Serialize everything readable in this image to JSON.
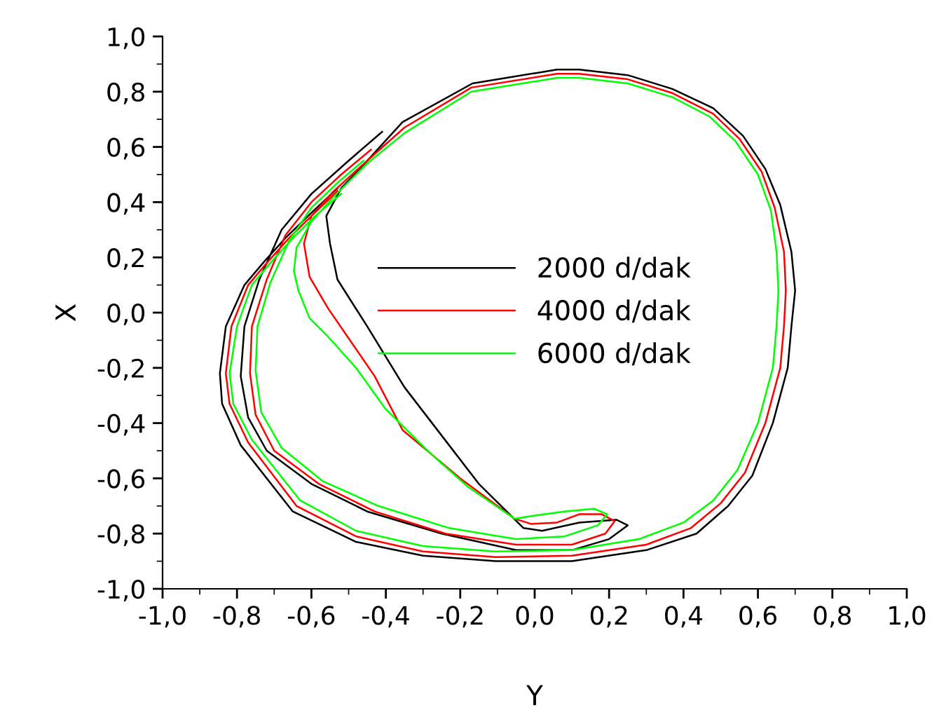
{
  "chart_data": {
    "type": "line",
    "xlabel": "Y",
    "ylabel": "X",
    "legend": "center",
    "grid": false,
    "xlim": [
      -1.0,
      1.0
    ],
    "ylim": [
      -1.0,
      1.0
    ],
    "xticks": [
      {
        "value": -1.0,
        "label": "-1,0"
      },
      {
        "value": -0.8,
        "label": "-0,8"
      },
      {
        "value": -0.6,
        "label": "-0,6"
      },
      {
        "value": -0.4,
        "label": "-0,4"
      },
      {
        "value": -0.2,
        "label": "-0,2"
      },
      {
        "value": 0.0,
        "label": "0,0"
      },
      {
        "value": 0.2,
        "label": "0,2"
      },
      {
        "value": 0.4,
        "label": "0,4"
      },
      {
        "value": 0.6,
        "label": "0,6"
      },
      {
        "value": 0.8,
        "label": "0,8"
      },
      {
        "value": 1.0,
        "label": "1,0"
      }
    ],
    "yticks": [
      {
        "value": -1.0,
        "label": "-1,0"
      },
      {
        "value": -0.8,
        "label": "-0,8"
      },
      {
        "value": -0.6,
        "label": "-0,6"
      },
      {
        "value": -0.4,
        "label": "-0,4"
      },
      {
        "value": -0.2,
        "label": "-0,2"
      },
      {
        "value": 0.0,
        "label": "0,0"
      },
      {
        "value": 0.2,
        "label": "0,2"
      },
      {
        "value": 0.4,
        "label": "0,4"
      },
      {
        "value": 0.6,
        "label": "0,6"
      },
      {
        "value": 0.8,
        "label": "0,8"
      },
      {
        "value": 1.0,
        "label": "1,0"
      }
    ],
    "series": [
      {
        "name": "2000 d/dak",
        "color": "#000000",
        "x": [
          -0.41,
          -0.5,
          -0.6,
          -0.68,
          -0.74,
          -0.78,
          -0.79,
          -0.77,
          -0.72,
          -0.6,
          -0.45,
          -0.25,
          -0.05,
          0.1,
          0.2,
          0.25,
          0.22,
          0.12,
          0.02,
          -0.03,
          -0.06,
          -0.15,
          -0.23,
          -0.35,
          -0.45,
          -0.53,
          -0.55,
          -0.56,
          -0.52,
          -0.45,
          -0.355,
          -0.167,
          0.06,
          0.12,
          0.25,
          0.37,
          0.48,
          0.56,
          0.62,
          0.66,
          0.69,
          0.7,
          0.69,
          0.68,
          0.64,
          0.585,
          0.52,
          0.435,
          0.3,
          0.1,
          -0.105,
          -0.3,
          -0.48,
          -0.65,
          -0.79,
          -0.84,
          -0.846,
          -0.83,
          -0.78,
          -0.73,
          -0.67,
          -0.605,
          -0.53
        ],
        "values": [
          0.655,
          0.55,
          0.43,
          0.3,
          0.12,
          -0.05,
          -0.23,
          -0.38,
          -0.5,
          -0.62,
          -0.72,
          -0.8,
          -0.86,
          -0.86,
          -0.82,
          -0.77,
          -0.75,
          -0.76,
          -0.79,
          -0.78,
          -0.74,
          -0.62,
          -0.48,
          -0.27,
          -0.05,
          0.12,
          0.25,
          0.35,
          0.45,
          0.55,
          0.69,
          0.83,
          0.88,
          0.88,
          0.86,
          0.81,
          0.74,
          0.64,
          0.52,
          0.39,
          0.22,
          0.08,
          -0.05,
          -0.2,
          -0.4,
          -0.59,
          -0.7,
          -0.8,
          -0.86,
          -0.9,
          -0.9,
          -0.88,
          -0.83,
          -0.72,
          -0.48,
          -0.33,
          -0.22,
          -0.05,
          0.1,
          0.18,
          0.27,
          0.355,
          0.45
        ]
      },
      {
        "name": "4000 d/dak",
        "color": "#ff0000",
        "x": [
          -0.44,
          -0.52,
          -0.6,
          -0.67,
          -0.72,
          -0.76,
          -0.765,
          -0.75,
          -0.7,
          -0.58,
          -0.43,
          -0.24,
          -0.05,
          0.1,
          0.19,
          0.215,
          0.18,
          0.12,
          0.06,
          -0.01,
          -0.054,
          -0.2,
          -0.355,
          -0.43,
          -0.555,
          -0.605,
          -0.62,
          -0.6,
          -0.54,
          -0.45,
          -0.35,
          -0.17,
          0.06,
          0.12,
          0.25,
          0.37,
          0.48,
          0.55,
          0.61,
          0.645,
          0.67,
          0.675,
          0.67,
          0.66,
          0.62,
          0.565,
          0.5,
          0.42,
          0.3,
          0.1,
          -0.105,
          -0.3,
          -0.48,
          -0.64,
          -0.77,
          -0.82,
          -0.83,
          -0.815,
          -0.77,
          -0.72,
          -0.66,
          -0.6,
          -0.53
        ],
        "values": [
          0.59,
          0.5,
          0.4,
          0.28,
          0.12,
          -0.05,
          -0.22,
          -0.37,
          -0.5,
          -0.62,
          -0.72,
          -0.8,
          -0.84,
          -0.84,
          -0.8,
          -0.755,
          -0.73,
          -0.73,
          -0.76,
          -0.765,
          -0.746,
          -0.6,
          -0.425,
          -0.23,
          0.015,
          0.13,
          0.25,
          0.35,
          0.44,
          0.55,
          0.67,
          0.815,
          0.865,
          0.865,
          0.845,
          0.795,
          0.72,
          0.63,
          0.51,
          0.38,
          0.22,
          0.08,
          -0.05,
          -0.2,
          -0.4,
          -0.58,
          -0.69,
          -0.78,
          -0.84,
          -0.88,
          -0.885,
          -0.865,
          -0.81,
          -0.7,
          -0.47,
          -0.33,
          -0.22,
          -0.05,
          0.1,
          0.18,
          0.27,
          0.35,
          0.44
        ]
      },
      {
        "name": "6000 d/dak",
        "color": "#00ff00",
        "x": [
          -0.46,
          -0.53,
          -0.6,
          -0.66,
          -0.71,
          -0.745,
          -0.75,
          -0.735,
          -0.68,
          -0.57,
          -0.42,
          -0.23,
          -0.05,
          0.08,
          0.17,
          0.195,
          0.16,
          0.08,
          0.0,
          -0.054,
          -0.18,
          -0.28,
          -0.4,
          -0.48,
          -0.56,
          -0.605,
          -0.635,
          -0.647,
          -0.64,
          -0.6,
          -0.54,
          -0.45,
          -0.35,
          -0.17,
          0.06,
          0.12,
          0.25,
          0.37,
          0.47,
          0.54,
          0.6,
          0.635,
          0.65,
          0.655,
          0.65,
          0.64,
          0.6,
          0.545,
          0.48,
          0.4,
          0.28,
          0.1,
          -0.105,
          -0.3,
          -0.48,
          -0.63,
          -0.76,
          -0.81,
          -0.82,
          -0.8,
          -0.76,
          -0.71,
          -0.65,
          -0.59,
          -0.52
        ],
        "values": [
          0.55,
          0.47,
          0.38,
          0.26,
          0.11,
          -0.05,
          -0.21,
          -0.36,
          -0.49,
          -0.61,
          -0.7,
          -0.78,
          -0.82,
          -0.81,
          -0.77,
          -0.73,
          -0.71,
          -0.72,
          -0.735,
          -0.746,
          -0.63,
          -0.51,
          -0.35,
          -0.2,
          -0.08,
          -0.02,
          0.08,
          0.15,
          0.235,
          0.33,
          0.42,
          0.54,
          0.65,
          0.8,
          0.85,
          0.85,
          0.83,
          0.78,
          0.71,
          0.62,
          0.5,
          0.37,
          0.22,
          0.08,
          -0.05,
          -0.2,
          -0.4,
          -0.57,
          -0.68,
          -0.76,
          -0.82,
          -0.86,
          -0.865,
          -0.845,
          -0.79,
          -0.68,
          -0.46,
          -0.33,
          -0.22,
          -0.05,
          0.1,
          0.18,
          0.27,
          0.35,
          0.43
        ]
      }
    ]
  }
}
